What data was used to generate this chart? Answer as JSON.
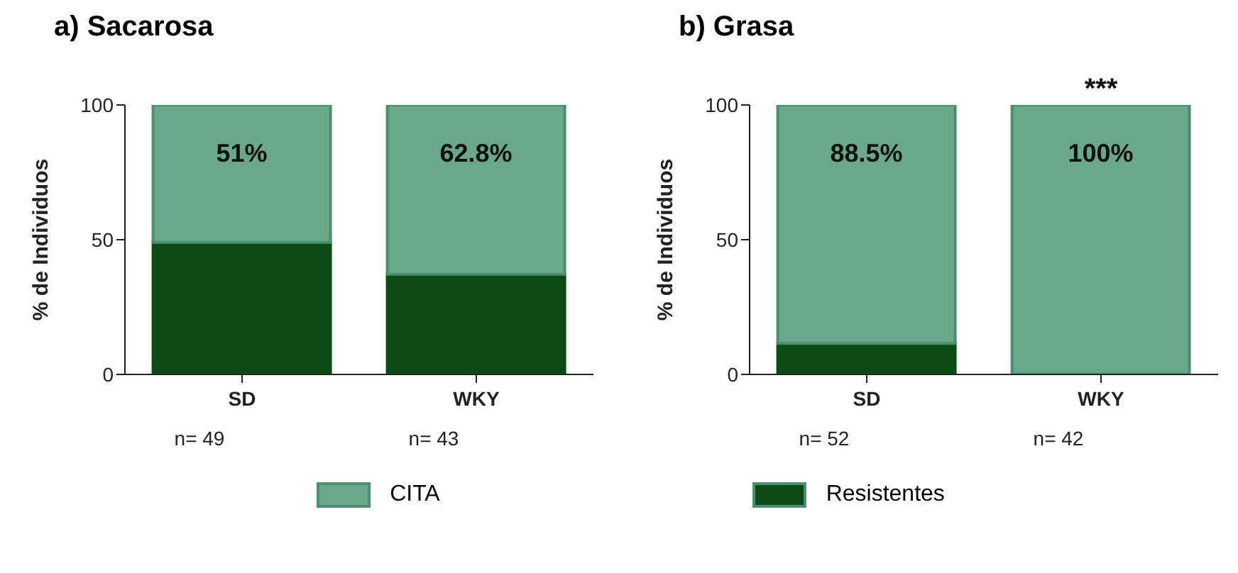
{
  "chart_data": [
    {
      "type": "bar",
      "title": "a) Sacarosa",
      "ylabel": "% de Individuos",
      "categories": [
        "SD",
        "WKY"
      ],
      "stacked": true,
      "ylim": [
        0,
        100
      ],
      "yticks": [
        0,
        50,
        100
      ],
      "grid": false,
      "legend": "bottom",
      "series": [
        {
          "name": "Resistentes",
          "color": "#0b4a12",
          "values": [
            49,
            37.2
          ]
        },
        {
          "name": "CITA",
          "color": "#6aa88c",
          "values": [
            51,
            62.8
          ],
          "value_labels": [
            "51%",
            "62.8%"
          ]
        }
      ],
      "annotations": [
        "n= 49",
        "n= 43"
      ]
    },
    {
      "type": "bar",
      "title": "b) Grasa",
      "ylabel": "% de Individuos",
      "categories": [
        "SD",
        "WKY"
      ],
      "stacked": true,
      "ylim": [
        0,
        100
      ],
      "yticks": [
        0,
        50,
        100
      ],
      "grid": false,
      "series": [
        {
          "color": "#0b4a12",
          "values": [
            11.5,
            0
          ]
        },
        {
          "color": "#6aa88c",
          "values": [
            88.5,
            100
          ],
          "value_labels": [
            "88.5%",
            "100%"
          ]
        }
      ],
      "annotations": [
        "n= 52",
        "n= 42",
        {
          "text": "***",
          "x": "WKY",
          "y": 100
        }
      ]
    }
  ]
}
